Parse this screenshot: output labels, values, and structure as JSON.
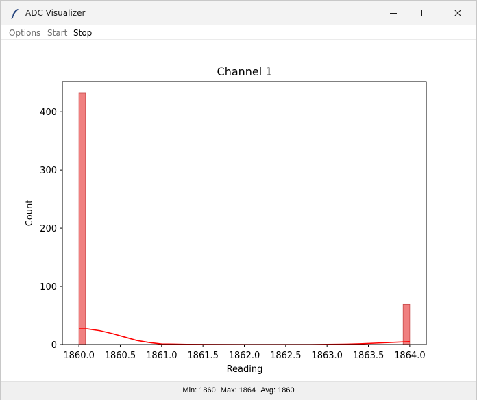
{
  "window": {
    "title": "ADC Visualizer"
  },
  "menu": {
    "items": [
      {
        "label": "Options",
        "enabled": false
      },
      {
        "label": "Start",
        "enabled": false
      },
      {
        "label": "Stop",
        "enabled": true
      }
    ]
  },
  "chart_data": {
    "type": "bar",
    "title": "Channel 1",
    "xlabel": "Reading",
    "ylabel": "Count",
    "xlim": [
      1859.8,
      1864.2
    ],
    "ylim": [
      0,
      452
    ],
    "bin_width": 0.08,
    "bins": [
      {
        "x0": 1860.0,
        "x1": 1860.08,
        "count": 432
      },
      {
        "x0": 1863.92,
        "x1": 1864.0,
        "count": 69
      }
    ],
    "kde": {
      "x": [
        1860.0,
        1860.1,
        1860.25,
        1860.4,
        1860.55,
        1860.7,
        1860.85,
        1861.0,
        1861.3,
        1861.6,
        1862.0,
        1862.4,
        1862.8,
        1863.0,
        1863.2,
        1863.4,
        1863.6,
        1863.8,
        1864.0
      ],
      "y": [
        27,
        27,
        24,
        19,
        13,
        7,
        3.5,
        1,
        0.3,
        0.1,
        0,
        0,
        0,
        0.2,
        0.5,
        1.2,
        2.5,
        3.8,
        5
      ]
    },
    "xticks": [
      "1860.0",
      "1860.5",
      "1861.0",
      "1861.5",
      "1862.0",
      "1862.5",
      "1863.0",
      "1863.5",
      "1864.0"
    ],
    "xtick_values": [
      1860.0,
      1860.5,
      1861.0,
      1861.5,
      1862.0,
      1862.5,
      1863.0,
      1863.5,
      1864.0
    ],
    "yticks": [
      "0",
      "100",
      "200",
      "300",
      "400"
    ],
    "ytick_values": [
      0,
      100,
      200,
      300,
      400
    ],
    "bar_color": "#f08080",
    "bar_edge_color": "#c94a4a",
    "line_color": "#ff0000",
    "grid": false
  },
  "status": {
    "min": "Min: 1860",
    "max": "Max: 1864",
    "avg": "Avg: 1860"
  }
}
